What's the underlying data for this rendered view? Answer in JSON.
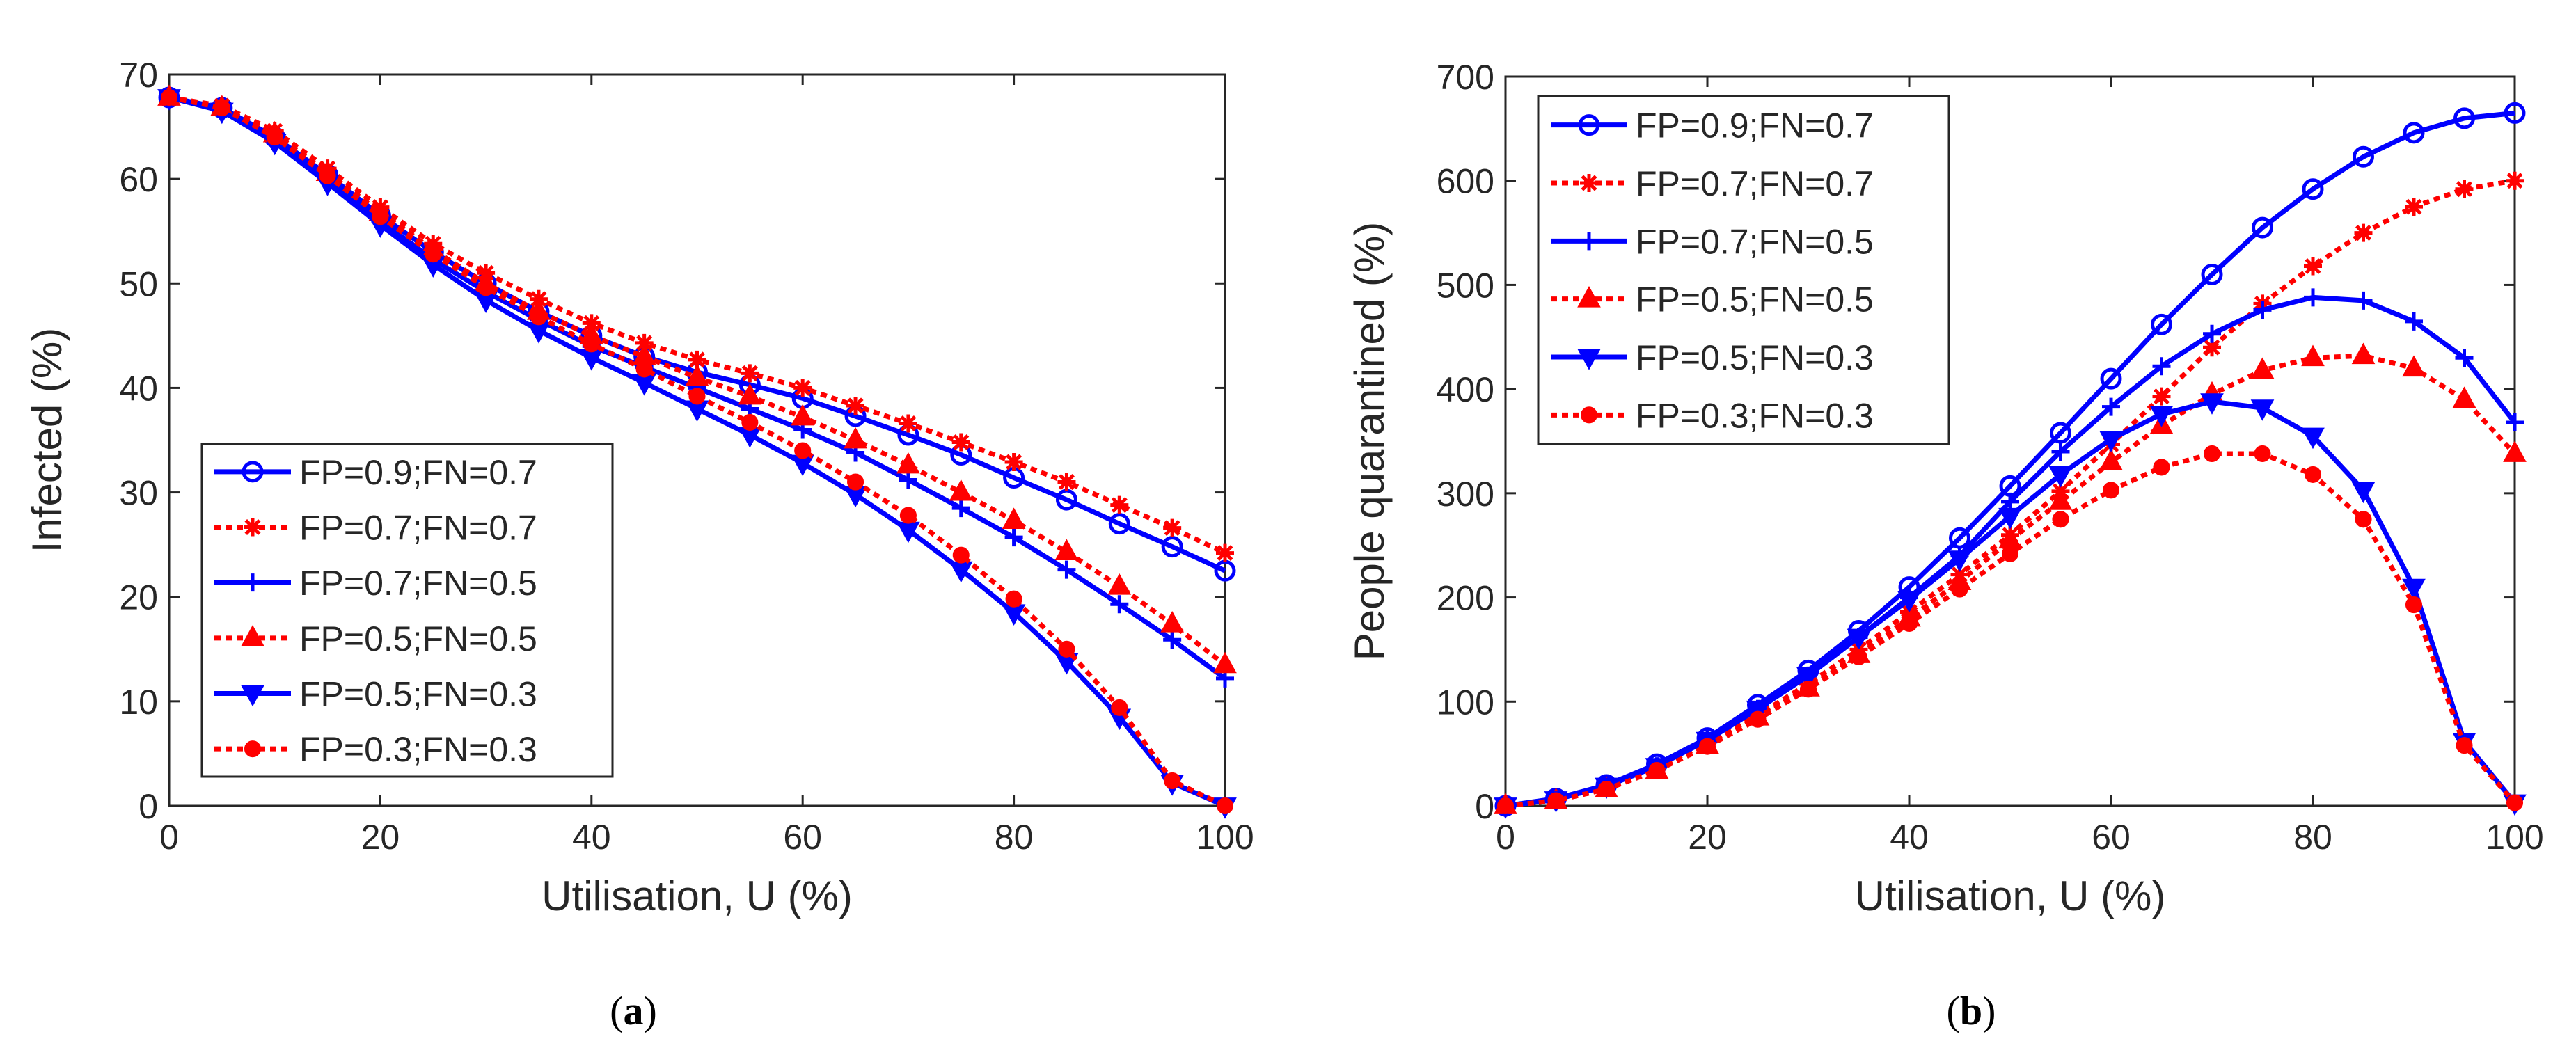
{
  "chart_data": [
    {
      "type": "line",
      "caption": "(a)",
      "caption_letter": "a",
      "title": "",
      "xlabel": "Utilisation, U (%)",
      "ylabel": "Infected (%)",
      "xlim": [
        0,
        100
      ],
      "ylim": [
        0,
        70
      ],
      "xticks": [
        0,
        20,
        40,
        60,
        80,
        100
      ],
      "yticks": [
        0,
        10,
        20,
        30,
        40,
        50,
        60,
        70
      ],
      "grid": false,
      "legend_position": "bottom-left",
      "x": [
        0,
        5,
        10,
        15,
        20,
        25,
        30,
        35,
        40,
        45,
        50,
        55,
        60,
        65,
        70,
        75,
        80,
        85,
        90,
        95,
        100
      ],
      "series": [
        {
          "name": "FP=0.9;FN=0.7",
          "color": "#0000ff",
          "style": "solid",
          "marker": "circle",
          "values": [
            67.8,
            66.8,
            64,
            60.4,
            56.5,
            53,
            50,
            47.3,
            45,
            43,
            41.5,
            40.3,
            39,
            37.3,
            35.5,
            33.6,
            31.4,
            29.3,
            27,
            24.8,
            22.5
          ]
        },
        {
          "name": "FP=0.7;FN=0.7",
          "color": "#ff0000",
          "style": "dotted",
          "marker": "asterisk",
          "values": [
            67.8,
            67,
            64.6,
            61,
            57.3,
            53.8,
            51,
            48.5,
            46.2,
            44.3,
            42.7,
            41.4,
            40,
            38.3,
            36.6,
            34.8,
            32.9,
            31,
            28.8,
            26.6,
            24.2
          ]
        },
        {
          "name": "FP=0.7;FN=0.5",
          "color": "#0000ff",
          "style": "solid",
          "marker": "plus",
          "values": [
            67.8,
            66.6,
            63.8,
            60,
            56,
            52.3,
            49.2,
            46.5,
            44,
            42,
            40,
            38,
            36,
            33.8,
            31.2,
            28.5,
            25.7,
            22.6,
            19.3,
            15.9,
            12.2
          ]
        },
        {
          "name": "FP=0.5;FN=0.5",
          "color": "#ff0000",
          "style": "dotted",
          "marker": "triangle-up",
          "values": [
            67.8,
            66.8,
            64.3,
            60.6,
            56.8,
            53.2,
            50,
            47.3,
            45,
            43,
            41,
            39.2,
            37.2,
            35,
            32.6,
            30,
            27.3,
            24.3,
            21,
            17.4,
            13.5
          ]
        },
        {
          "name": "FP=0.5;FN=0.3",
          "color": "#0000ff",
          "style": "solid",
          "marker": "triangle-down",
          "values": [
            67.8,
            66.5,
            63.5,
            59.6,
            55.6,
            51.8,
            48.4,
            45.5,
            42.9,
            40.5,
            38,
            35.5,
            32.8,
            29.8,
            26.4,
            22.6,
            18.5,
            13.8,
            8.5,
            2.2,
            0
          ]
        },
        {
          "name": "FP=0.3;FN=0.3",
          "color": "#ff0000",
          "style": "dotted",
          "marker": "dot",
          "values": [
            67.8,
            66.8,
            64,
            60.3,
            56.4,
            52.8,
            49.6,
            46.8,
            44.2,
            41.8,
            39.2,
            36.7,
            34,
            31,
            27.8,
            24,
            19.8,
            15,
            9.4,
            2.4,
            0
          ]
        }
      ]
    },
    {
      "type": "line",
      "caption": "(b)",
      "caption_letter": "b",
      "title": "",
      "xlabel": "Utilisation, U (%)",
      "ylabel": "People quarantined (%)",
      "xlim": [
        0,
        100
      ],
      "ylim": [
        0,
        700
      ],
      "xticks": [
        0,
        20,
        40,
        60,
        80,
        100
      ],
      "yticks": [
        0,
        100,
        200,
        300,
        400,
        500,
        600,
        700
      ],
      "grid": false,
      "legend_position": "top-left",
      "x": [
        0,
        5,
        10,
        15,
        20,
        25,
        30,
        35,
        40,
        45,
        50,
        55,
        60,
        65,
        70,
        75,
        80,
        85,
        90,
        95,
        100
      ],
      "series": [
        {
          "name": "FP=0.9;FN=0.7",
          "color": "#0000ff",
          "style": "solid",
          "marker": "circle",
          "values": [
            0,
            7,
            20,
            40,
            65,
            97,
            130,
            168,
            210,
            257,
            307,
            358,
            410,
            462,
            510,
            555,
            592,
            623,
            646,
            660,
            665
          ]
        },
        {
          "name": "FP=0.7;FN=0.7",
          "color": "#ff0000",
          "style": "dotted",
          "marker": "asterisk",
          "values": [
            0,
            6,
            18,
            37,
            60,
            87,
            117,
            150,
            186,
            222,
            260,
            302,
            347,
            393,
            440,
            482,
            518,
            550,
            575,
            592,
            600
          ]
        },
        {
          "name": "FP=0.7;FN=0.5",
          "color": "#0000ff",
          "style": "solid",
          "marker": "plus",
          "values": [
            0,
            6,
            19,
            38,
            63,
            93,
            125,
            162,
            200,
            240,
            292,
            340,
            383,
            422,
            453,
            476,
            488,
            485,
            465,
            430,
            368
          ]
        },
        {
          "name": "FP=0.5;FN=0.5",
          "color": "#ff0000",
          "style": "dotted",
          "marker": "triangle-up",
          "values": [
            0,
            5,
            16,
            34,
            58,
            85,
            113,
            145,
            180,
            215,
            255,
            292,
            330,
            365,
            395,
            418,
            430,
            432,
            420,
            390,
            338
          ]
        },
        {
          "name": "FP=0.5;FN=0.3",
          "color": "#0000ff",
          "style": "solid",
          "marker": "triangle-down",
          "values": [
            0,
            6,
            19,
            38,
            63,
            93,
            125,
            162,
            198,
            237,
            278,
            318,
            352,
            376,
            388,
            382,
            355,
            303,
            210,
            62,
            3
          ]
        },
        {
          "name": "FP=0.3;FN=0.3",
          "color": "#ff0000",
          "style": "dotted",
          "marker": "dot",
          "values": [
            0,
            5,
            16,
            34,
            57,
            83,
            112,
            143,
            175,
            208,
            242,
            275,
            303,
            325,
            338,
            338,
            318,
            275,
            193,
            58,
            3
          ]
        }
      ]
    }
  ]
}
